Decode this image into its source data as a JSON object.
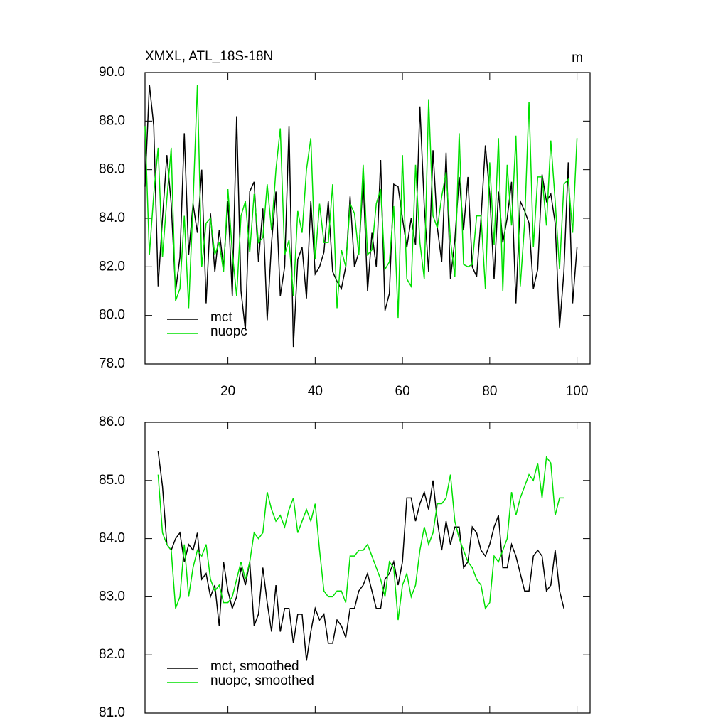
{
  "chart_data": [
    {
      "type": "line",
      "title": "XMXL, ATL_18S-18N",
      "units": "m",
      "x": [
        1,
        2,
        3,
        4,
        5,
        6,
        7,
        8,
        9,
        10,
        11,
        12,
        13,
        14,
        15,
        16,
        17,
        18,
        19,
        20,
        21,
        22,
        23,
        24,
        25,
        26,
        27,
        28,
        29,
        30,
        31,
        32,
        33,
        34,
        35,
        36,
        37,
        38,
        39,
        40,
        41,
        42,
        43,
        44,
        45,
        46,
        47,
        48,
        49,
        50,
        51,
        52,
        53,
        54,
        55,
        56,
        57,
        58,
        59,
        60,
        61,
        62,
        63,
        64,
        65,
        66,
        67,
        68,
        69,
        70,
        71,
        72,
        73,
        74,
        75,
        76,
        77,
        78,
        79,
        80,
        81,
        82,
        83,
        84,
        85,
        86,
        87,
        88,
        89,
        90,
        91,
        92,
        93,
        94,
        95,
        96,
        97,
        98,
        99,
        100
      ],
      "series": [
        {
          "name": "mct",
          "color": "#000000",
          "values": [
            85.3,
            89.5,
            87.8,
            81.2,
            84.0,
            86.6,
            84.6,
            81.0,
            82.4,
            87.5,
            82.5,
            84.6,
            83.4,
            86.0,
            80.5,
            84.2,
            81.8,
            83.5,
            82.0,
            84.7,
            80.8,
            88.2,
            81.0,
            79.4,
            85.1,
            85.5,
            82.2,
            84.4,
            79.8,
            83.0,
            85.1,
            80.8,
            82.0,
            87.8,
            78.7,
            82.3,
            82.8,
            80.7,
            84.7,
            81.7,
            82.0,
            82.6,
            84.7,
            81.8,
            81.4,
            81.1,
            82.0,
            84.9,
            82.0,
            82.6,
            85.6,
            81.0,
            83.4,
            82.0,
            86.4,
            80.2,
            80.9,
            85.4,
            85.3,
            84.0,
            82.8,
            84.0,
            82.9,
            88.6,
            84.5,
            81.8,
            86.8,
            83.6,
            82.2,
            86.7,
            81.5,
            83.1,
            85.7,
            83.5,
            85.7,
            82.0,
            81.6,
            84.0,
            87.0,
            85.0,
            81.5,
            85.1,
            83.0,
            84.0,
            85.5,
            80.5,
            84.7,
            84.3,
            83.8,
            81.1,
            81.9,
            85.8,
            84.7,
            85.0,
            83.8,
            79.5,
            81.8,
            86.3,
            80.5,
            82.8
          ]
        },
        {
          "name": "nuopc",
          "color": "#00e000",
          "values": [
            87.8,
            82.5,
            85.0,
            86.9,
            82.4,
            84.8,
            86.9,
            80.6,
            81.1,
            84.1,
            80.3,
            84.6,
            89.5,
            82.0,
            83.8,
            84.0,
            82.5,
            83.0,
            81.8,
            85.2,
            82.6,
            80.8,
            84.1,
            84.7,
            82.6,
            85.0,
            83.0,
            83.2,
            85.4,
            83.5,
            86.0,
            87.7,
            82.5,
            83.1,
            80.8,
            84.3,
            83.4,
            86.0,
            87.3,
            82.3,
            84.6,
            83.0,
            83.0,
            85.4,
            80.3,
            82.7,
            82.0,
            84.6,
            84.2,
            82.5,
            86.2,
            82.5,
            82.7,
            84.6,
            85.2,
            81.9,
            82.2,
            84.5,
            79.9,
            86.6,
            81.5,
            81.2,
            86.2,
            83.0,
            81.5,
            88.9,
            84.1,
            83.6,
            84.9,
            85.9,
            83.1,
            81.6,
            87.5,
            82.1,
            82.0,
            82.1,
            84.1,
            84.1,
            81.1,
            86.3,
            82.9,
            87.3,
            81.0,
            86.2,
            83.7,
            87.4,
            81.2,
            83.8,
            88.8,
            82.8,
            85.7,
            85.7,
            83.7,
            87.2,
            84.7,
            81.9,
            85.4,
            85.6,
            83.4,
            87.3
          ]
        }
      ],
      "xlim": [
        1,
        103
      ],
      "xticks": [
        20,
        40,
        60,
        80,
        100
      ],
      "ylim": [
        78,
        90
      ],
      "yticks": [
        {
          "value": 78,
          "label": "78.0"
        },
        {
          "value": 80,
          "label": "80.0"
        },
        {
          "value": 82,
          "label": "82.0"
        },
        {
          "value": 84,
          "label": "84.0"
        },
        {
          "value": 86,
          "label": "86.0"
        },
        {
          "value": 88,
          "label": "88.0"
        },
        {
          "value": 90,
          "label": "90.0"
        }
      ],
      "legend": "lower left"
    },
    {
      "type": "line",
      "x": [
        4,
        5,
        6,
        7,
        8,
        9,
        10,
        11,
        12,
        13,
        14,
        15,
        16,
        17,
        18,
        19,
        20,
        21,
        22,
        23,
        24,
        25,
        26,
        27,
        28,
        29,
        30,
        31,
        32,
        33,
        34,
        35,
        36,
        37,
        38,
        39,
        40,
        41,
        42,
        43,
        44,
        45,
        46,
        47,
        48,
        49,
        50,
        51,
        52,
        53,
        54,
        55,
        56,
        57,
        58,
        59,
        60,
        61,
        62,
        63,
        64,
        65,
        66,
        67,
        68,
        69,
        70,
        71,
        72,
        73,
        74,
        75,
        76,
        77,
        78,
        79,
        80,
        81,
        82,
        83,
        84,
        85,
        86,
        87,
        88,
        89,
        90,
        91,
        92,
        93,
        94,
        95,
        96,
        97
      ],
      "series": [
        {
          "name": "mct, smoothed",
          "color": "#000000",
          "values": [
            85.5,
            84.9,
            83.9,
            83.8,
            84.0,
            84.1,
            83.6,
            83.9,
            83.8,
            84.1,
            83.3,
            83.4,
            83.0,
            83.2,
            82.5,
            83.6,
            83.1,
            82.8,
            83.0,
            83.5,
            83.2,
            83.6,
            82.5,
            82.7,
            83.5,
            82.9,
            82.4,
            83.2,
            82.4,
            82.8,
            82.8,
            82.2,
            82.7,
            82.7,
            81.9,
            82.4,
            82.8,
            82.6,
            82.7,
            82.2,
            82.2,
            82.6,
            82.5,
            82.3,
            82.8,
            82.8,
            83.1,
            83.2,
            83.4,
            83.1,
            82.8,
            82.8,
            83.3,
            83.4,
            83.6,
            83.2,
            83.6,
            84.7,
            84.7,
            84.3,
            84.6,
            84.8,
            84.5,
            85.0,
            84.3,
            83.8,
            84.3,
            83.9,
            84.2,
            84.2,
            83.5,
            83.6,
            84.2,
            84.1,
            83.8,
            83.7,
            83.9,
            84.2,
            84.4,
            83.5,
            83.5,
            83.9,
            83.7,
            83.4,
            83.1,
            83.1,
            83.7,
            83.8,
            83.7,
            83.1,
            83.2,
            83.8,
            83.1,
            82.8
          ]
        },
        {
          "name": "nuopc, smoothed",
          "color": "#00e000",
          "values": [
            85.1,
            84.1,
            83.9,
            83.8,
            82.8,
            83.0,
            83.9,
            83.0,
            83.5,
            83.8,
            83.7,
            83.9,
            83.3,
            83.1,
            83.2,
            82.9,
            82.9,
            83.0,
            83.3,
            83.6,
            83.3,
            83.6,
            84.1,
            84.0,
            84.1,
            84.8,
            84.5,
            84.3,
            84.4,
            84.2,
            84.5,
            84.7,
            84.1,
            84.3,
            84.5,
            84.3,
            84.6,
            83.8,
            83.1,
            83.0,
            83.0,
            83.1,
            83.1,
            82.9,
            83.7,
            83.7,
            83.8,
            83.8,
            83.9,
            83.7,
            83.5,
            83.3,
            83.0,
            83.6,
            83.5,
            82.6,
            83.2,
            83.4,
            83.0,
            83.2,
            83.8,
            84.2,
            83.9,
            84.1,
            84.6,
            84.6,
            84.7,
            85.1,
            84.3,
            84.0,
            83.8,
            83.6,
            83.5,
            83.3,
            83.2,
            82.8,
            82.9,
            83.7,
            83.6,
            83.8,
            84.0,
            84.8,
            84.4,
            84.7,
            84.9,
            85.1,
            85.0,
            85.3,
            84.7,
            85.4,
            85.3,
            84.4,
            84.7,
            84.7
          ]
        }
      ],
      "xlim": [
        1,
        103
      ],
      "xticks": [
        20,
        40,
        60,
        80,
        100
      ],
      "ylim": [
        81,
        86
      ],
      "yticks": [
        {
          "value": 81,
          "label": "81.0"
        },
        {
          "value": 82,
          "label": "82.0"
        },
        {
          "value": 83,
          "label": "83.0"
        },
        {
          "value": 84,
          "label": "84.0"
        },
        {
          "value": 85,
          "label": "85.0"
        },
        {
          "value": 86,
          "label": "86.0"
        }
      ],
      "legend": "lower left"
    }
  ]
}
